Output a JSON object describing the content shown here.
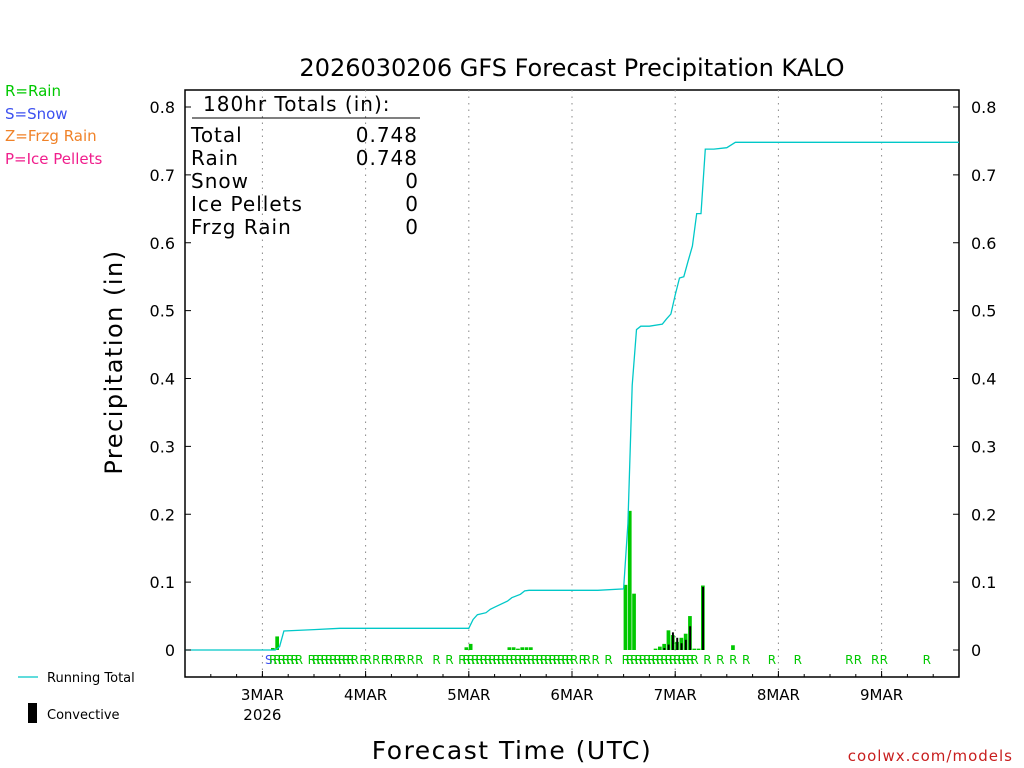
{
  "chart_data": {
    "type": "bar",
    "title": "2026030206 GFS Forecast Precipitation KALO",
    "xlabel": "Forecast Time (UTC)",
    "ylabel": "Precipitation (in)",
    "ylim": [
      0,
      0.8
    ],
    "yticks": [
      0,
      0.1,
      0.2,
      0.3,
      0.4,
      0.5,
      0.6,
      0.7,
      0.8
    ],
    "ytick_labels": [
      "0",
      "0.1",
      "0.2",
      "0.3",
      "0.4",
      "0.5",
      "0.6",
      "0.7",
      "0.8"
    ],
    "x_unit": "hours since 2026-03-02 06Z",
    "xlim": [
      0,
      180
    ],
    "xticks": [
      {
        "hour": 18,
        "label": "3MAR",
        "sub": "2026"
      },
      {
        "hour": 42,
        "label": "4MAR",
        "sub": ""
      },
      {
        "hour": 66,
        "label": "5MAR",
        "sub": ""
      },
      {
        "hour": 90,
        "label": "6MAR",
        "sub": ""
      },
      {
        "hour": 114,
        "label": "7MAR",
        "sub": ""
      },
      {
        "hour": 138,
        "label": "8MAR",
        "sub": ""
      },
      {
        "hour": 162,
        "label": "9MAR",
        "sub": ""
      }
    ],
    "series": [
      {
        "name": "Running Total",
        "color": "#00c8c8",
        "x": [
          0,
          21,
          22,
          23,
          30,
          36,
          66,
          67,
          68,
          70,
          71,
          72,
          75,
          76,
          78,
          79,
          80,
          81,
          84,
          96,
          102,
          103,
          104,
          105,
          106,
          107,
          108,
          111,
          112,
          113,
          114,
          115,
          116,
          117,
          118,
          119,
          120,
          121,
          122,
          123,
          126,
          128,
          129,
          132,
          180
        ],
        "values": [
          0,
          0,
          0.005,
          0.028,
          0.03,
          0.032,
          0.032,
          0.045,
          0.052,
          0.055,
          0.06,
          0.063,
          0.072,
          0.077,
          0.082,
          0.087,
          0.088,
          0.088,
          0.088,
          0.088,
          0.09,
          0.186,
          0.39,
          0.472,
          0.477,
          0.477,
          0.477,
          0.48,
          0.488,
          0.495,
          0.523,
          0.548,
          0.55,
          0.573,
          0.595,
          0.643,
          0.643,
          0.738,
          0.738,
          0.738,
          0.74,
          0.748,
          0.748,
          0.748,
          0.748
        ]
      },
      {
        "name": "Rain",
        "color": "#00c800",
        "x": [
          21,
          22,
          66,
          67,
          76,
          77,
          78,
          79,
          80,
          81,
          103,
          104,
          105,
          110,
          111,
          112,
          113,
          114,
          115,
          116,
          117,
          118,
          119,
          120,
          121,
          128
        ],
        "values": [
          0.003,
          0.02,
          0.004,
          0.009,
          0.004,
          0.004,
          0.002,
          0.004,
          0.004,
          0.004,
          0.096,
          0.205,
          0.083,
          0.002,
          0.005,
          0.009,
          0.029,
          0.022,
          0.012,
          0.018,
          0.024,
          0.05,
          0.002,
          0.002,
          0.095,
          0.007
        ]
      },
      {
        "name": "Convective",
        "color": "#000000",
        "x": [
          112,
          113,
          114,
          115,
          116,
          117,
          118,
          121
        ],
        "values": [
          0.003,
          0.008,
          0.026,
          0.018,
          0.01,
          0.015,
          0.035,
          0.093
        ]
      }
    ],
    "ptype_markers": [
      {
        "hour": 20,
        "type": "S"
      },
      {
        "hour": 21,
        "type": "R"
      },
      {
        "hour": 22,
        "type": "R"
      },
      {
        "hour": 23,
        "type": "R"
      },
      {
        "hour": 24,
        "type": "R"
      },
      {
        "hour": 25,
        "type": "R"
      },
      {
        "hour": 26,
        "type": "R"
      },
      {
        "hour": 27,
        "type": "R"
      },
      {
        "hour": 30,
        "type": "R"
      },
      {
        "hour": 31,
        "type": "R"
      },
      {
        "hour": 32,
        "type": "R"
      },
      {
        "hour": 33,
        "type": "R"
      },
      {
        "hour": 34,
        "type": "R"
      },
      {
        "hour": 35,
        "type": "R"
      },
      {
        "hour": 36,
        "type": "R"
      },
      {
        "hour": 37,
        "type": "R"
      },
      {
        "hour": 38,
        "type": "R"
      },
      {
        "hour": 39,
        "type": "R"
      },
      {
        "hour": 40,
        "type": "R"
      },
      {
        "hour": 42,
        "type": "R"
      },
      {
        "hour": 43,
        "type": "R"
      },
      {
        "hour": 45,
        "type": "R"
      },
      {
        "hour": 47,
        "type": "R"
      },
      {
        "hour": 48,
        "type": "R"
      },
      {
        "hour": 50,
        "type": "R"
      },
      {
        "hour": 51,
        "type": "R"
      },
      {
        "hour": 53,
        "type": "R"
      },
      {
        "hour": 55,
        "type": "R"
      },
      {
        "hour": 59,
        "type": "R"
      },
      {
        "hour": 62,
        "type": "R"
      },
      {
        "hour": 65,
        "type": "R"
      },
      {
        "hour": 66,
        "type": "R"
      },
      {
        "hour": 67,
        "type": "R"
      },
      {
        "hour": 68,
        "type": "R"
      },
      {
        "hour": 69,
        "type": "R"
      },
      {
        "hour": 70,
        "type": "R"
      },
      {
        "hour": 71,
        "type": "R"
      },
      {
        "hour": 72,
        "type": "R"
      },
      {
        "hour": 73,
        "type": "R"
      },
      {
        "hour": 74,
        "type": "R"
      },
      {
        "hour": 75,
        "type": "R"
      },
      {
        "hour": 76,
        "type": "R"
      },
      {
        "hour": 77,
        "type": "R"
      },
      {
        "hour": 78,
        "type": "R"
      },
      {
        "hour": 79,
        "type": "R"
      },
      {
        "hour": 80,
        "type": "R"
      },
      {
        "hour": 81,
        "type": "R"
      },
      {
        "hour": 82,
        "type": "R"
      },
      {
        "hour": 83,
        "type": "R"
      },
      {
        "hour": 84,
        "type": "R"
      },
      {
        "hour": 85,
        "type": "R"
      },
      {
        "hour": 86,
        "type": "R"
      },
      {
        "hour": 87,
        "type": "R"
      },
      {
        "hour": 88,
        "type": "R"
      },
      {
        "hour": 89,
        "type": "R"
      },
      {
        "hour": 90,
        "type": "R"
      },
      {
        "hour": 91,
        "type": "R"
      },
      {
        "hour": 93,
        "type": "R"
      },
      {
        "hour": 94,
        "type": "R"
      },
      {
        "hour": 96,
        "type": "R"
      },
      {
        "hour": 99,
        "type": "R"
      },
      {
        "hour": 103,
        "type": "R"
      },
      {
        "hour": 104,
        "type": "R"
      },
      {
        "hour": 105,
        "type": "R"
      },
      {
        "hour": 106,
        "type": "R"
      },
      {
        "hour": 107,
        "type": "R"
      },
      {
        "hour": 108,
        "type": "R"
      },
      {
        "hour": 109,
        "type": "R"
      },
      {
        "hour": 110,
        "type": "R"
      },
      {
        "hour": 111,
        "type": "R"
      },
      {
        "hour": 112,
        "type": "R"
      },
      {
        "hour": 113,
        "type": "R"
      },
      {
        "hour": 114,
        "type": "R"
      },
      {
        "hour": 115,
        "type": "R"
      },
      {
        "hour": 116,
        "type": "R"
      },
      {
        "hour": 117,
        "type": "R"
      },
      {
        "hour": 118,
        "type": "R"
      },
      {
        "hour": 119,
        "type": "R"
      },
      {
        "hour": 122,
        "type": "R"
      },
      {
        "hour": 125,
        "type": "R"
      },
      {
        "hour": 128,
        "type": "R"
      },
      {
        "hour": 131,
        "type": "R"
      },
      {
        "hour": 137,
        "type": "R"
      },
      {
        "hour": 143,
        "type": "R"
      },
      {
        "hour": 155,
        "type": "R"
      },
      {
        "hour": 157,
        "type": "R"
      },
      {
        "hour": 161,
        "type": "R"
      },
      {
        "hour": 163,
        "type": "R"
      },
      {
        "hour": 173,
        "type": "R"
      }
    ],
    "totals_box": {
      "heading": "180hr Totals (in):",
      "rows": [
        {
          "label": "Total",
          "value": "0.748"
        },
        {
          "label": "Rain",
          "value": "0.748"
        },
        {
          "label": "Snow",
          "value": "0"
        },
        {
          "label": "Ice Pellets",
          "value": "0"
        },
        {
          "label": "Frzg Rain",
          "value": "0"
        }
      ]
    }
  },
  "ptype_legend": [
    {
      "text": "R=Rain",
      "color": "#00c800"
    },
    {
      "text": "S=Snow",
      "color": "#3c50f0"
    },
    {
      "text": "Z=Frzg Rain",
      "color": "#f08228"
    },
    {
      "text": "P=Ice Pellets",
      "color": "#f01e8c"
    }
  ],
  "series_legend": {
    "running_total": "Running Total",
    "convective": "Convective"
  },
  "ptype_colors": {
    "R": "#00c800",
    "S": "#3c50f0",
    "Z": "#f08228",
    "P": "#f01e8c"
  },
  "credit": "coolwx.com/models"
}
